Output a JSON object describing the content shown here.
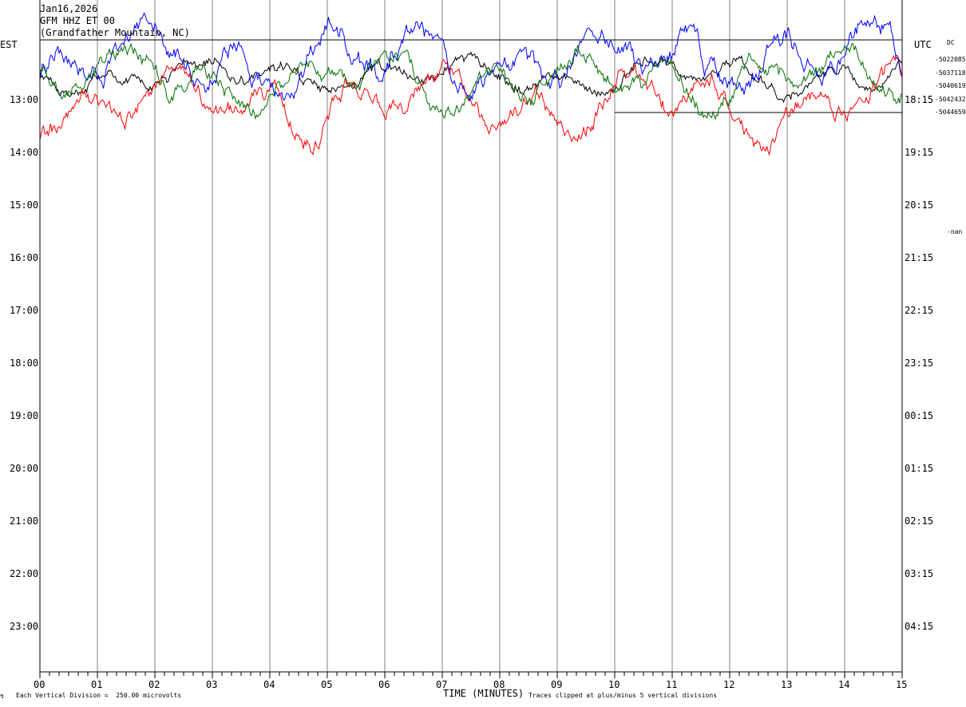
{
  "header": {
    "date": "Jan16,2026",
    "channel": "GFM HHZ ET 00",
    "location": "(Grandfather Mountain, NC)"
  },
  "left_axis_title": "EST",
  "right_axis_title": "UTC",
  "dc_label": "DC",
  "dc_values": [
    "-5022085",
    "-5037118",
    "-5040619",
    "-5042432",
    "-5044659"
  ],
  "right_marker": "-nan",
  "footer": {
    "scale": "Each Vertical Division =  250.00 microvolts",
    "clip": "Traces clipped at plus/minus 5 vertical divisions"
  },
  "chart_data": {
    "type": "line",
    "title": "",
    "xlabel": "TIME (MINUTES)",
    "x_ticks": [
      "00",
      "01",
      "02",
      "03",
      "04",
      "05",
      "06",
      "07",
      "08",
      "09",
      "10",
      "11",
      "12",
      "13",
      "14",
      "15"
    ],
    "xlim": [
      0,
      15
    ],
    "left_rows": [
      "13:00",
      "14:00",
      "15:00",
      "16:00",
      "17:00",
      "18:00",
      "19:00",
      "20:00",
      "21:00",
      "22:00",
      "23:00"
    ],
    "right_rows": [
      "18:15",
      "19:15",
      "20:15",
      "21:15",
      "22:15",
      "23:15",
      "00:15",
      "01:15",
      "02:15",
      "03:15",
      "04:15"
    ],
    "trace_colors": [
      "#000000",
      "#ff0000",
      "#0000ff",
      "#007000"
    ],
    "traces_shown": 5,
    "gridlines": true
  }
}
